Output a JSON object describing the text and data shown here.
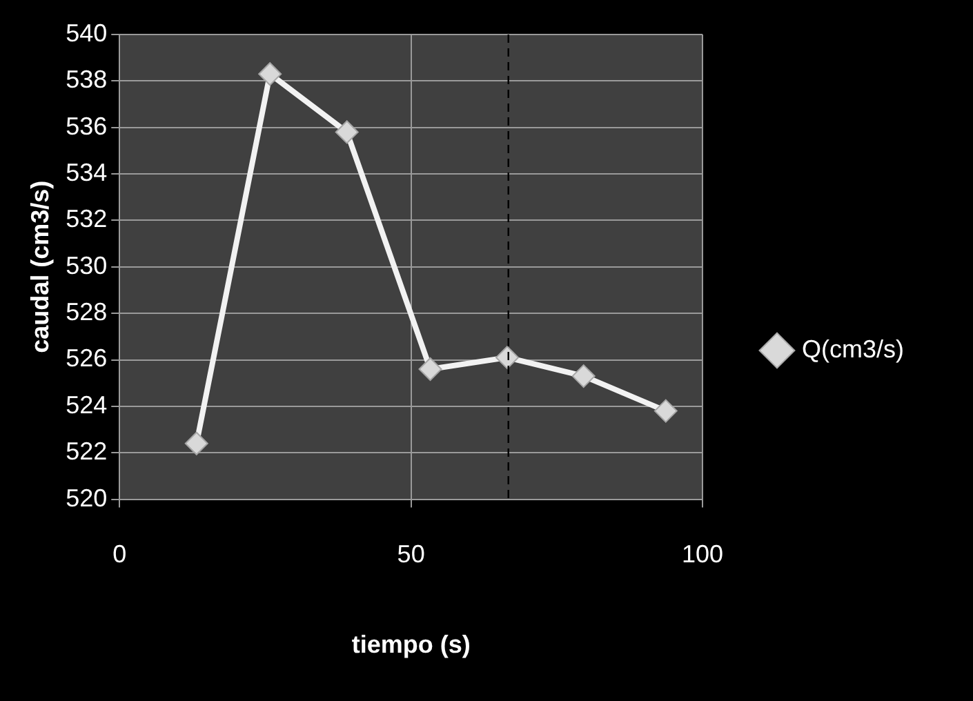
{
  "chart_data": {
    "type": "line",
    "xlabel": "tiempo (s)",
    "ylabel": "caudal (cm3/s)",
    "xlim": [
      0,
      100
    ],
    "xticks": [
      0,
      50,
      100
    ],
    "ylim": [
      520,
      540
    ],
    "yticks": [
      520,
      522,
      524,
      526,
      528,
      530,
      532,
      534,
      536,
      538,
      540
    ],
    "grid": true,
    "legend": "right",
    "marker": "diamond",
    "line_style": "solid",
    "series": [
      {
        "name": "Q(cm3/s)",
        "color": "#f2f2f2",
        "x": [
          13.2,
          25.8,
          39,
          53.3,
          66.5,
          79.6,
          93.7
        ],
        "values": [
          522.4,
          538.3,
          535.8,
          525.6,
          526.1,
          525.3,
          523.8
        ]
      }
    ],
    "ref_lines": [
      {
        "axis": "x",
        "value": 66.7,
        "color": "#000000",
        "line_style": "dashed"
      }
    ]
  }
}
